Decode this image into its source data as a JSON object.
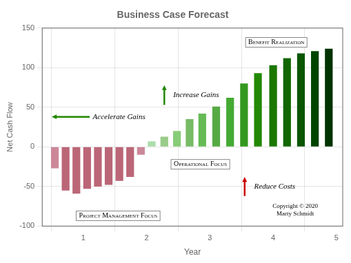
{
  "chart_data": {
    "type": "bar",
    "title": "Business Case Forecast",
    "x_label": "Year",
    "y_label": "Net Cash Flow",
    "x": [
      0.55,
      0.72,
      0.89,
      1.06,
      1.23,
      1.4,
      1.57,
      1.74,
      1.91,
      2.08,
      2.28,
      2.48,
      2.68,
      2.88,
      3.1,
      3.32,
      3.54,
      3.76,
      4.0,
      4.22,
      4.44,
      4.66,
      4.88
    ],
    "values": [
      -27,
      -55,
      -59,
      -53,
      -50,
      -48,
      -43,
      -38,
      -10,
      7,
      13,
      20,
      35,
      42,
      51,
      62,
      80,
      93,
      103,
      112,
      118,
      121,
      124
    ],
    "colors": [
      "#cc8899",
      "#bb6677",
      "#bb6677",
      "#bb6677",
      "#bb6677",
      "#bb6677",
      "#bb6677",
      "#bb6677",
      "#cc8899",
      "#aaddaa",
      "#99cc88",
      "#88cc77",
      "#77bb66",
      "#66bb55",
      "#55aa44",
      "#44aa33",
      "#33991f",
      "#228800",
      "#1a7700",
      "#116600",
      "#0a5500",
      "#004400",
      "#003300"
    ],
    "xlim": [
      0.35,
      5.1
    ],
    "xticks": [
      1,
      2,
      3,
      4,
      5
    ],
    "ylim": [
      -100,
      150
    ],
    "yticks": [
      -100,
      -50,
      0,
      50,
      100,
      150
    ],
    "grid": true,
    "annotations": [
      {
        "text": "Benefit Realization"
      },
      {
        "text": "Operational Focus"
      },
      {
        "text": "Project Management Focus"
      },
      {
        "text": "Increase Gains",
        "color": "#228800"
      },
      {
        "text": "Accelerate Gains",
        "color": "#228800"
      },
      {
        "text": "Reduce Costs",
        "color": "#cc0000"
      },
      {
        "text": "Copyright © 2020\nMarty Schmidt"
      }
    ]
  }
}
